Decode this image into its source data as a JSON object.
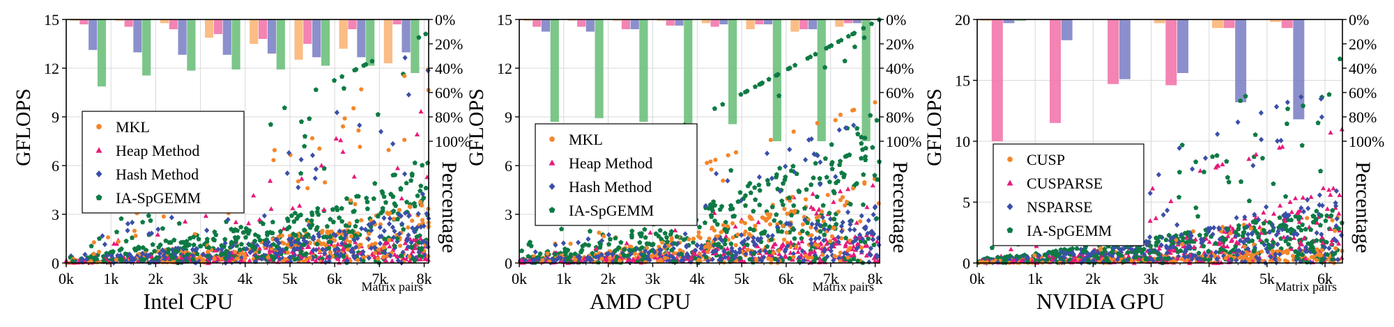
{
  "chart_data": [
    {
      "type": "scatter",
      "subtitle": "Intel CPU",
      "xlabel": "Matrix pairs",
      "ylabel": "GFLOPS",
      "y2label": "Percentage",
      "xlim": [
        0,
        8100
      ],
      "ylim": [
        0,
        15
      ],
      "x_ticks": [
        0,
        1000,
        2000,
        3000,
        4000,
        5000,
        6000,
        7000,
        8000
      ],
      "x_tick_labels": [
        "0k",
        "1k",
        "2k",
        "3k",
        "4k",
        "5k",
        "6k",
        "7k",
        "8k"
      ],
      "y_ticks": [
        0,
        3,
        6,
        9,
        12,
        15
      ],
      "y_tick_labels": [
        "0",
        "3",
        "6",
        "9",
        "12",
        "15"
      ],
      "y2_ticks": [
        0,
        20,
        40,
        60,
        80,
        100
      ],
      "y2_tick_labels": [
        "0%",
        "20%",
        "40%",
        "60%",
        "80%",
        "100%"
      ],
      "grid": true,
      "legend_position": "middle-left",
      "series": [
        {
          "name": "MKL",
          "marker": "circle",
          "color": "#f4862a"
        },
        {
          "name": "Heap Method",
          "marker": "triangle",
          "color": "#e8197a"
        },
        {
          "name": "Hash Method",
          "marker": "diamond",
          "color": "#3b4fa8"
        },
        {
          "name": "IA-SpGEMM",
          "marker": "pentagon",
          "color": "#0d7a44"
        }
      ],
      "bar_groups": [
        {
          "x": 500,
          "values": [
            1,
            4,
            25,
            55
          ]
        },
        {
          "x": 1500,
          "values": [
            1,
            6,
            27,
            46
          ]
        },
        {
          "x": 2500,
          "values": [
            3,
            8,
            29,
            42
          ]
        },
        {
          "x": 3500,
          "values": [
            15,
            12,
            29,
            41
          ]
        },
        {
          "x": 4500,
          "values": [
            20,
            16,
            28,
            41
          ]
        },
        {
          "x": 5500,
          "values": [
            33,
            20,
            31,
            38
          ]
        },
        {
          "x": 6500,
          "values": [
            24,
            8,
            31,
            38
          ]
        },
        {
          "x": 7500,
          "values": [
            36,
            4,
            27,
            44
          ]
        }
      ],
      "scatter_trend": {
        "max_x": 8100,
        "seed": 11,
        "peak": [
          14,
          14,
          14,
          14.2
        ],
        "means": [
          [
            [
              0,
              0.1
            ],
            [
              2000,
              0.5
            ],
            [
              4000,
              0.9
            ],
            [
              6000,
              1.4
            ],
            [
              8000,
              2.6
            ]
          ],
          [
            [
              0,
              0.05
            ],
            [
              2000,
              0.3
            ],
            [
              4000,
              0.6
            ],
            [
              6000,
              0.8
            ],
            [
              8000,
              1.0
            ]
          ],
          [
            [
              0,
              0.1
            ],
            [
              2000,
              0.5
            ],
            [
              4000,
              0.9
            ],
            [
              6000,
              1.3
            ],
            [
              8000,
              2.2
            ]
          ],
          [
            [
              0,
              0.2
            ],
            [
              2000,
              0.8
            ],
            [
              4000,
              1.5
            ],
            [
              6000,
              2.4
            ],
            [
              8000,
              4.2
            ]
          ]
        ]
      }
    },
    {
      "type": "scatter",
      "subtitle": "AMD CPU",
      "xlabel": "Matrix pairs",
      "ylabel": "GFLOPS",
      "y2label": "Percentage",
      "xlim": [
        0,
        8100
      ],
      "ylim": [
        0,
        15
      ],
      "x_ticks": [
        0,
        1000,
        2000,
        3000,
        4000,
        5000,
        6000,
        7000,
        8000
      ],
      "x_tick_labels": [
        "0k",
        "1k",
        "2k",
        "3k",
        "4k",
        "5k",
        "6k",
        "7k",
        "8k"
      ],
      "y_ticks": [
        0,
        3,
        6,
        9,
        12,
        15
      ],
      "y_tick_labels": [
        "0",
        "3",
        "6",
        "9",
        "12",
        "15"
      ],
      "y2_ticks": [
        0,
        20,
        40,
        60,
        80,
        100
      ],
      "y2_tick_labels": [
        "0%",
        "20%",
        "40%",
        "60%",
        "80%",
        "100%"
      ],
      "grid": true,
      "legend_position": "middle-left",
      "series": [
        {
          "name": "MKL",
          "marker": "circle",
          "color": "#f4862a"
        },
        {
          "name": "Heap Method",
          "marker": "triangle",
          "color": "#e8197a"
        },
        {
          "name": "Hash Method",
          "marker": "diamond",
          "color": "#3b4fa8"
        },
        {
          "name": "IA-SpGEMM",
          "marker": "pentagon",
          "color": "#0d7a44"
        }
      ],
      "bar_groups": [
        {
          "x": 500,
          "values": [
            1,
            6,
            10,
            84
          ]
        },
        {
          "x": 1500,
          "values": [
            1,
            6,
            10,
            81
          ]
        },
        {
          "x": 2500,
          "values": [
            1,
            8,
            8,
            84
          ]
        },
        {
          "x": 3500,
          "values": [
            1,
            5,
            5,
            87
          ]
        },
        {
          "x": 4500,
          "values": [
            3,
            6,
            4,
            86
          ]
        },
        {
          "x": 5500,
          "values": [
            8,
            4,
            4,
            100
          ]
        },
        {
          "x": 6500,
          "values": [
            10,
            8,
            8,
            100
          ]
        },
        {
          "x": 7500,
          "values": [
            6,
            3,
            3,
            100
          ]
        }
      ],
      "scatter_trend": {
        "max_x": 8100,
        "seed": 23,
        "peak": [
          10,
          5,
          9,
          15
        ],
        "means": [
          [
            [
              0,
              0.1
            ],
            [
              2000,
              0.5
            ],
            [
              4000,
              1.2
            ],
            [
              6000,
              2.6
            ],
            [
              8000,
              3.6
            ]
          ],
          [
            [
              0,
              0.05
            ],
            [
              2000,
              0.3
            ],
            [
              4000,
              0.5
            ],
            [
              6000,
              0.8
            ],
            [
              8000,
              1.2
            ]
          ],
          [
            [
              0,
              0.1
            ],
            [
              2000,
              0.4
            ],
            [
              4000,
              0.9
            ],
            [
              6000,
              1.6
            ],
            [
              8000,
              2.4
            ]
          ],
          [
            [
              0,
              0.2
            ],
            [
              2000,
              1.0
            ],
            [
              4000,
              2.2
            ],
            [
              6000,
              4.0
            ],
            [
              8000,
              6.0
            ]
          ]
        ]
      }
    },
    {
      "type": "scatter",
      "subtitle": "NVIDIA GPU",
      "xlabel": "Matrix pairs",
      "ylabel": "GFLOPS",
      "y2label": "Percentage",
      "xlim": [
        0,
        6300
      ],
      "ylim": [
        0,
        20
      ],
      "x_ticks": [
        0,
        1000,
        2000,
        3000,
        4000,
        5000,
        6000
      ],
      "x_tick_labels": [
        "0k",
        "1k",
        "2k",
        "3k",
        "4k",
        "5k",
        "6k"
      ],
      "y_ticks": [
        0,
        5,
        10,
        15,
        20
      ],
      "y_tick_labels": [
        "0",
        "5",
        "10",
        "15",
        "20"
      ],
      "y2_ticks": [
        0,
        20,
        40,
        60,
        80,
        100
      ],
      "y2_tick_labels": [
        "0%",
        "20%",
        "40%",
        "60%",
        "80%",
        "100%"
      ],
      "grid": true,
      "legend_position": "bottom-left",
      "series": [
        {
          "name": "CUSP",
          "marker": "circle",
          "color": "#f4862a"
        },
        {
          "name": "CUSPARSE",
          "marker": "triangle",
          "color": "#e8197a"
        },
        {
          "name": "NSPARSE",
          "marker": "diamond",
          "color": "#3b4fa8"
        },
        {
          "name": "IA-SpGEMM",
          "marker": "pentagon",
          "color": "#0d7a44"
        }
      ],
      "bar_groups": [
        {
          "x": 450,
          "values": [
            1,
            100,
            3,
            1
          ]
        },
        {
          "x": 1450,
          "values": [
            0,
            85,
            17,
            0
          ]
        },
        {
          "x": 2450,
          "values": [
            0,
            53,
            49,
            0
          ]
        },
        {
          "x": 3450,
          "values": [
            3,
            54,
            44,
            0
          ]
        },
        {
          "x": 4450,
          "values": [
            7,
            7,
            68,
            0
          ]
        },
        {
          "x": 5450,
          "values": [
            2,
            7,
            82,
            0
          ]
        }
      ],
      "scatter_trend": {
        "max_x": 6300,
        "seed": 37,
        "peak": [
          4,
          11,
          15,
          19
        ],
        "means": [
          [
            [
              0,
              0.05
            ],
            [
              2000,
              0.2
            ],
            [
              4000,
              0.5
            ],
            [
              6300,
              0.8
            ]
          ],
          [
            [
              0,
              0.1
            ],
            [
              2000,
              0.6
            ],
            [
              4000,
              1.6
            ],
            [
              6300,
              4.5
            ]
          ],
          [
            [
              0,
              0.1
            ],
            [
              2000,
              0.8
            ],
            [
              4000,
              2.0
            ],
            [
              6300,
              4.0
            ]
          ],
          [
            [
              0,
              0.2
            ],
            [
              2000,
              0.9
            ],
            [
              4000,
              1.8
            ],
            [
              6300,
              3.0
            ]
          ]
        ]
      }
    }
  ]
}
